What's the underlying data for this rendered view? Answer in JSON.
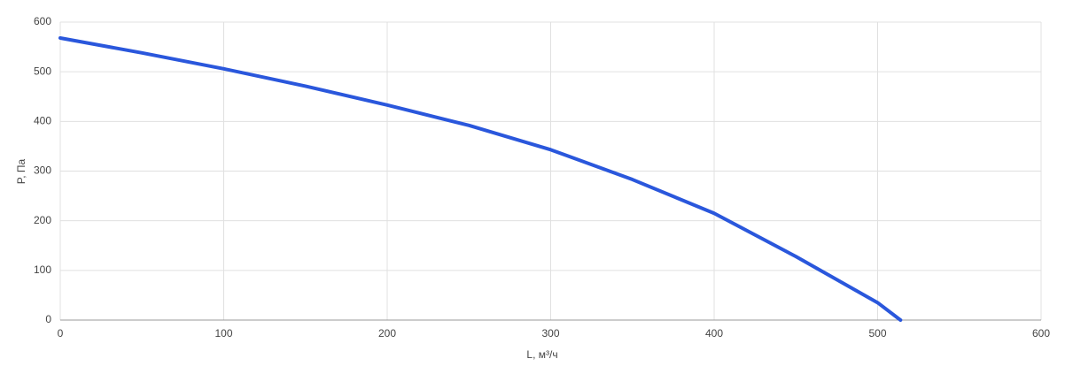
{
  "chart_data": {
    "type": "line",
    "x_label": "L, м³/ч",
    "y_label": "P, Па",
    "x": [
      0,
      50,
      100,
      150,
      200,
      250,
      300,
      350,
      400,
      450,
      500,
      514
    ],
    "values": [
      568,
      538,
      506,
      471,
      433,
      392,
      343,
      283,
      215,
      128,
      35,
      0
    ],
    "color": "#2a57dc",
    "xlim": [
      0,
      600
    ],
    "xticks": [
      0,
      100,
      200,
      300,
      400,
      500,
      600
    ],
    "ylim": [
      0,
      600
    ],
    "yticks": [
      0,
      100,
      200,
      300,
      400,
      500,
      600
    ],
    "grid": true
  }
}
